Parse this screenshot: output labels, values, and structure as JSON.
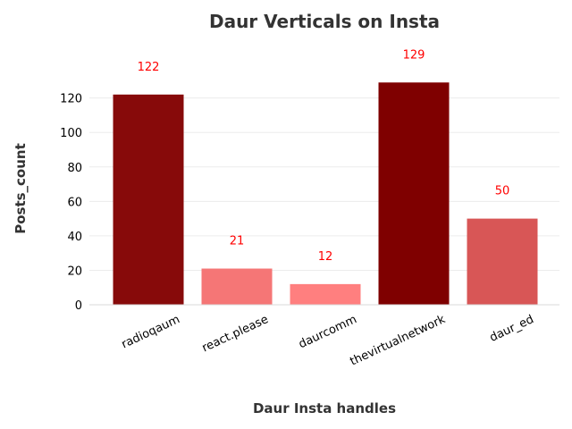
{
  "chart_data": {
    "type": "bar",
    "title": "Daur Verticals on Insta",
    "xlabel": "Daur Insta handles",
    "ylabel": "Posts_count",
    "categories": [
      "radioqaum",
      "react.please",
      "daurcomm",
      "thevirtualnetwork",
      "daur_ed"
    ],
    "values": [
      122,
      21,
      12,
      129,
      50
    ],
    "data_labels": [
      "122",
      "21",
      "12",
      "129",
      "50"
    ],
    "bar_colors": [
      "#870a0a",
      "#f57676",
      "#ff7f7f",
      "#7f0000",
      "#d85656"
    ],
    "data_label_color": "#ff0000",
    "yticks": [
      0,
      20,
      40,
      60,
      80,
      100,
      120
    ],
    "ylim": [
      0,
      135
    ],
    "grid": true,
    "legend": "none"
  }
}
